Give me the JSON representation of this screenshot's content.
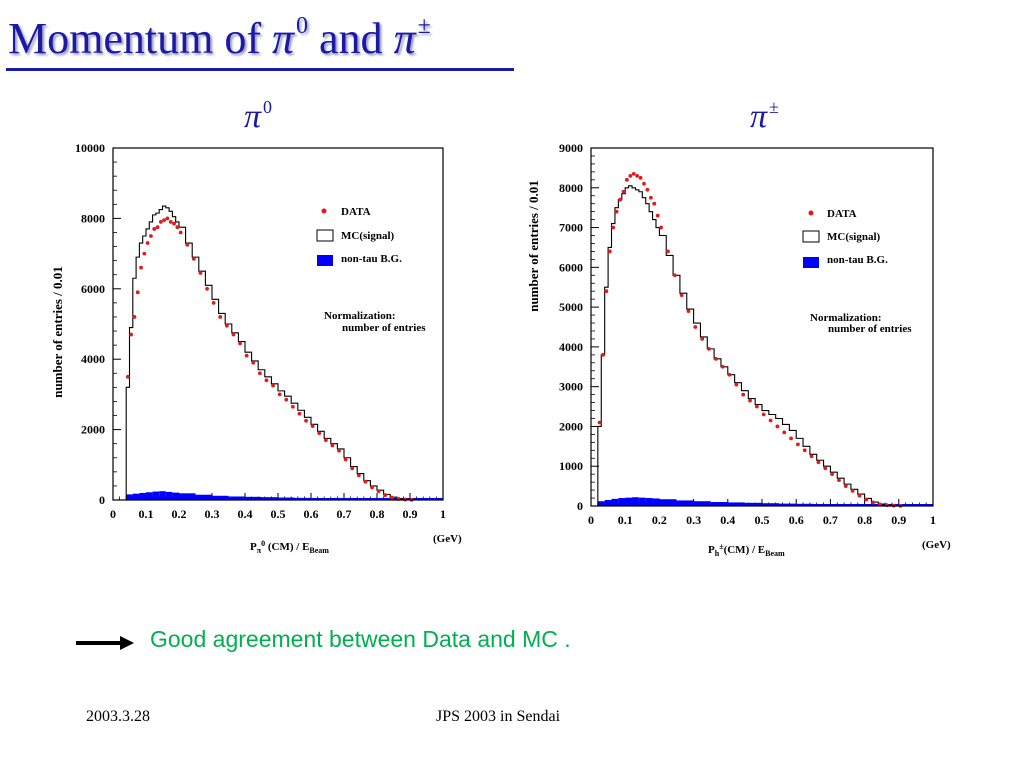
{
  "slide": {
    "title": {
      "part1": "Momentum of ",
      "pi0": "π",
      "pi0_sup": "0",
      "part2": " and ",
      "pipm": "π",
      "pipm_sup": "±"
    },
    "conclusion": "Good agreement between Data and MC .",
    "footer": {
      "date": "2003.3.28",
      "event": "JPS 2003 in Sendai"
    }
  },
  "colors": {
    "title": "#1a1aa6",
    "data": "#e31a1c",
    "mc": "#000000",
    "bg_hist": "#0000ff",
    "conclusion": "#00b050"
  },
  "icons": {
    "arrow": "right-arrow-icon"
  },
  "chart_data": [
    {
      "type": "line",
      "panel_title": {
        "symbol": "π",
        "sup": "0"
      },
      "xlabel": {
        "base": "P",
        "sub": "π",
        "sup": "0",
        "rest": " (CM) / E",
        "sub2": "Beam"
      },
      "xunit": "(GeV)",
      "ylabel": "number of entries  / 0.01",
      "xlim": [
        0,
        1
      ],
      "ylim": [
        0,
        10000
      ],
      "x_ticks": [
        "0",
        "0.1",
        "0.2",
        "0.3",
        "0.4",
        "0.5",
        "0.6",
        "0.7",
        "0.8",
        "0.9",
        "1"
      ],
      "y_ticks": [
        "0",
        "2000",
        "4000",
        "6000",
        "8000",
        "10000"
      ],
      "legend": {
        "position": "right",
        "entries": [
          {
            "label": "DATA",
            "style": "dot"
          },
          {
            "label": "MC(signal)",
            "style": "hollow-box"
          },
          {
            "label": "non-tau B.G.",
            "style": "filled-box"
          }
        ]
      },
      "annotation": {
        "line1": "Normalization:",
        "line2": "number of entries"
      },
      "series": [
        {
          "name": "DATA",
          "style": "points",
          "x": [
            0.04,
            0.05,
            0.06,
            0.07,
            0.08,
            0.09,
            0.1,
            0.11,
            0.12,
            0.13,
            0.14,
            0.15,
            0.16,
            0.17,
            0.18,
            0.19,
            0.2,
            0.22,
            0.24,
            0.26,
            0.28,
            0.3,
            0.32,
            0.34,
            0.36,
            0.38,
            0.4,
            0.42,
            0.44,
            0.46,
            0.48,
            0.5,
            0.52,
            0.54,
            0.56,
            0.58,
            0.6,
            0.62,
            0.64,
            0.66,
            0.68,
            0.7,
            0.72,
            0.74,
            0.76,
            0.78,
            0.8,
            0.82,
            0.84,
            0.86,
            0.88,
            0.9
          ],
          "y": [
            3500,
            4700,
            5200,
            5900,
            6600,
            7000,
            7300,
            7500,
            7700,
            7750,
            7900,
            7950,
            8000,
            7900,
            7850,
            7750,
            7600,
            7250,
            6850,
            6450,
            6000,
            5600,
            5200,
            4950,
            4700,
            4450,
            4100,
            3900,
            3600,
            3400,
            3250,
            3000,
            2850,
            2650,
            2450,
            2250,
            2100,
            1900,
            1700,
            1550,
            1400,
            1150,
            900,
            700,
            520,
            360,
            250,
            140,
            70,
            30,
            15,
            5
          ]
        },
        {
          "name": "MC(signal)",
          "style": "step",
          "x": [
            0.04,
            0.05,
            0.06,
            0.07,
            0.08,
            0.09,
            0.1,
            0.11,
            0.12,
            0.13,
            0.14,
            0.15,
            0.16,
            0.17,
            0.18,
            0.19,
            0.2,
            0.22,
            0.24,
            0.26,
            0.28,
            0.3,
            0.32,
            0.34,
            0.36,
            0.38,
            0.4,
            0.42,
            0.44,
            0.46,
            0.48,
            0.5,
            0.52,
            0.54,
            0.56,
            0.58,
            0.6,
            0.62,
            0.64,
            0.66,
            0.68,
            0.7,
            0.72,
            0.74,
            0.76,
            0.78,
            0.8,
            0.82,
            0.84,
            0.86,
            0.88,
            0.9
          ],
          "y": [
            3200,
            4900,
            6300,
            6900,
            7300,
            7500,
            7700,
            7900,
            8100,
            8150,
            8250,
            8350,
            8300,
            8200,
            8050,
            7900,
            7750,
            7300,
            6900,
            6500,
            6100,
            5700,
            5300,
            5000,
            4750,
            4500,
            4200,
            3950,
            3700,
            3500,
            3300,
            3100,
            2950,
            2750,
            2550,
            2350,
            2150,
            1950,
            1750,
            1600,
            1450,
            1200,
            950,
            750,
            550,
            400,
            280,
            160,
            80,
            35,
            15,
            5
          ]
        },
        {
          "name": "non-tau B.G.",
          "style": "filled",
          "x": [
            0.04,
            0.06,
            0.08,
            0.1,
            0.12,
            0.14,
            0.16,
            0.18,
            0.2,
            0.25,
            0.3,
            0.35,
            0.4,
            0.45,
            0.5,
            0.55,
            0.6,
            0.65,
            0.7,
            0.75,
            0.8,
            0.85,
            0.9,
            0.95,
            1.0
          ],
          "y": [
            160,
            180,
            200,
            220,
            240,
            250,
            230,
            210,
            190,
            150,
            120,
            100,
            90,
            80,
            70,
            60,
            55,
            50,
            45,
            40,
            35,
            30,
            25,
            20,
            15
          ]
        }
      ]
    },
    {
      "type": "line",
      "panel_title": {
        "symbol": "π",
        "sup": "±"
      },
      "xlabel": {
        "base": "P",
        "sub": "h",
        "sup": "±",
        "rest": "(CM) / E",
        "sub2": "Beam"
      },
      "xunit": "(GeV)",
      "ylabel": "number of entries / 0.01",
      "xlim": [
        0,
        1
      ],
      "ylim": [
        0,
        9000
      ],
      "x_ticks": [
        "0",
        "0.1",
        "0.2",
        "0.3",
        "0.4",
        "0.5",
        "0.6",
        "0.7",
        "0.8",
        "0.9",
        "1"
      ],
      "y_ticks": [
        "0",
        "1000",
        "2000",
        "3000",
        "4000",
        "5000",
        "6000",
        "7000",
        "8000",
        "9000"
      ],
      "legend": {
        "position": "right",
        "entries": [
          {
            "label": "DATA",
            "style": "dot"
          },
          {
            "label": "MC(signal)",
            "style": "hollow-box"
          },
          {
            "label": "non-tau B.G.",
            "style": "filled-box"
          }
        ]
      },
      "annotation": {
        "line1": "Normalization:",
        "line2": "number of entries"
      },
      "series": [
        {
          "name": "DATA",
          "style": "points",
          "x": [
            0.02,
            0.03,
            0.04,
            0.05,
            0.06,
            0.07,
            0.08,
            0.09,
            0.1,
            0.11,
            0.12,
            0.13,
            0.14,
            0.15,
            0.16,
            0.17,
            0.18,
            0.19,
            0.2,
            0.22,
            0.24,
            0.26,
            0.28,
            0.3,
            0.32,
            0.34,
            0.36,
            0.38,
            0.4,
            0.42,
            0.44,
            0.46,
            0.48,
            0.5,
            0.52,
            0.54,
            0.56,
            0.58,
            0.6,
            0.62,
            0.64,
            0.66,
            0.68,
            0.7,
            0.72,
            0.74,
            0.76,
            0.78,
            0.8,
            0.82,
            0.84,
            0.86,
            0.88,
            0.9
          ],
          "y": [
            2100,
            3800,
            5400,
            6400,
            7000,
            7400,
            7700,
            7900,
            8200,
            8300,
            8350,
            8300,
            8250,
            8100,
            7950,
            7750,
            7600,
            7300,
            7000,
            6400,
            5800,
            5300,
            4900,
            4500,
            4200,
            3950,
            3700,
            3500,
            3300,
            3050,
            2800,
            2650,
            2500,
            2300,
            2150,
            2000,
            1850,
            1700,
            1550,
            1400,
            1250,
            1100,
            950,
            800,
            650,
            500,
            380,
            260,
            160,
            90,
            40,
            20,
            8,
            3
          ]
        },
        {
          "name": "MC(signal)",
          "style": "step",
          "x": [
            0.02,
            0.03,
            0.04,
            0.05,
            0.06,
            0.07,
            0.08,
            0.09,
            0.1,
            0.11,
            0.12,
            0.13,
            0.14,
            0.15,
            0.16,
            0.17,
            0.18,
            0.19,
            0.2,
            0.22,
            0.24,
            0.26,
            0.28,
            0.3,
            0.32,
            0.34,
            0.36,
            0.38,
            0.4,
            0.42,
            0.44,
            0.46,
            0.48,
            0.5,
            0.52,
            0.54,
            0.56,
            0.58,
            0.6,
            0.62,
            0.64,
            0.66,
            0.68,
            0.7,
            0.72,
            0.74,
            0.76,
            0.78,
            0.8,
            0.82,
            0.84,
            0.86,
            0.88,
            0.9
          ],
          "y": [
            2000,
            3800,
            5500,
            6500,
            7100,
            7500,
            7700,
            7850,
            8000,
            8050,
            8000,
            7950,
            7900,
            7750,
            7600,
            7400,
            7200,
            7000,
            6800,
            6300,
            5800,
            5350,
            4950,
            4600,
            4250,
            3950,
            3700,
            3500,
            3300,
            3100,
            2900,
            2700,
            2550,
            2400,
            2300,
            2200,
            2050,
            1900,
            1700,
            1500,
            1300,
            1150,
            1000,
            850,
            700,
            550,
            420,
            300,
            190,
            100,
            50,
            20,
            8,
            3
          ]
        },
        {
          "name": "non-tau B.G.",
          "style": "filled",
          "x": [
            0.02,
            0.04,
            0.06,
            0.08,
            0.1,
            0.12,
            0.14,
            0.16,
            0.18,
            0.2,
            0.25,
            0.3,
            0.35,
            0.4,
            0.45,
            0.5,
            0.55,
            0.6,
            0.65,
            0.7,
            0.75,
            0.8,
            0.85,
            0.9,
            0.95,
            1.0
          ],
          "y": [
            120,
            150,
            180,
            200,
            210,
            220,
            210,
            200,
            190,
            170,
            140,
            120,
            100,
            90,
            80,
            70,
            60,
            55,
            50,
            45,
            40,
            35,
            30,
            25,
            20,
            15
          ]
        }
      ]
    }
  ]
}
